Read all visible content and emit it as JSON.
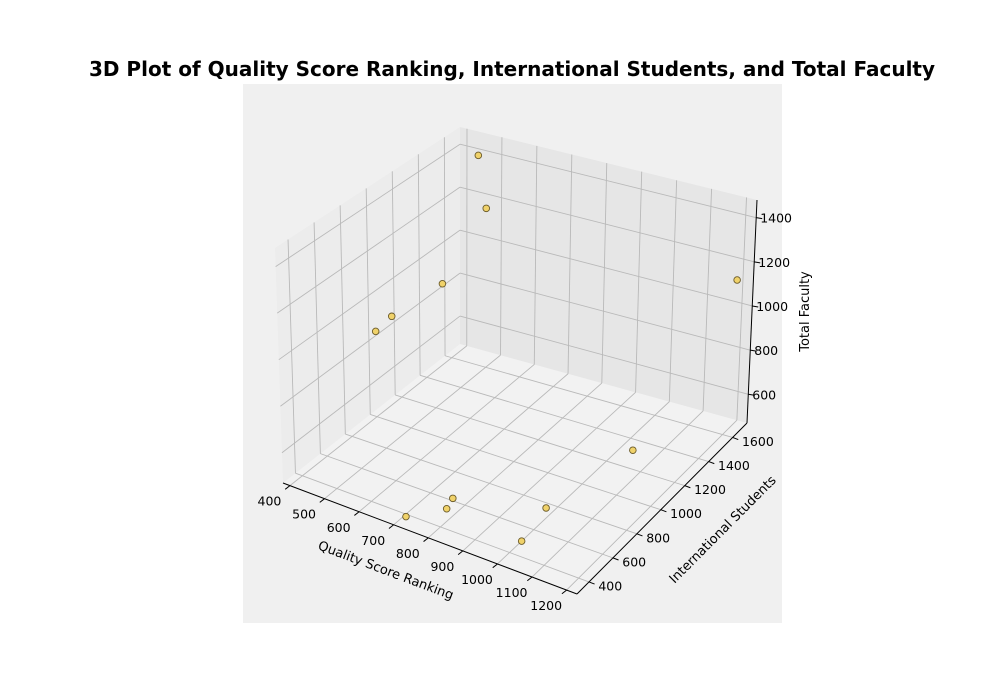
{
  "chart_data": {
    "type": "scatter",
    "projection": "3d",
    "title": "3D Plot of Quality Score Ranking, International Students, and Total Faculty",
    "xlabel": "Quality Score Ranking",
    "ylabel": "International Students",
    "zlabel": "Total Faculty",
    "xlim": [
      380,
      1230
    ],
    "ylim": [
      300,
      1720
    ],
    "zlim": [
      470,
      1480
    ],
    "xticks": [
      "400",
      "500",
      "600",
      "700",
      "800",
      "900",
      "1000",
      "1100",
      "1200"
    ],
    "yticks": [
      "400",
      "600",
      "800",
      "1000",
      "1200",
      "1400",
      "1600"
    ],
    "zticks": [
      "600",
      "800",
      "1000",
      "1200",
      "1400"
    ],
    "grid": true,
    "point_color": "#f0d26a",
    "points": [
      {
        "x": 440,
        "y": 1700,
        "z": 1380
      },
      {
        "x": 500,
        "y": 1600,
        "z": 1200
      },
      {
        "x": 520,
        "y": 1200,
        "z": 1030
      },
      {
        "x": 410,
        "y": 1100,
        "z": 880
      },
      {
        "x": 400,
        "y": 1000,
        "z": 850
      },
      {
        "x": 1190,
        "y": 1700,
        "z": 1110
      },
      {
        "x": 1150,
        "y": 980,
        "z": 680
      },
      {
        "x": 1000,
        "y": 700,
        "z": 510
      },
      {
        "x": 1000,
        "y": 500,
        "z": 470
      },
      {
        "x": 800,
        "y": 500,
        "z": 540
      },
      {
        "x": 800,
        "y": 450,
        "z": 520
      },
      {
        "x": 700,
        "y": 400,
        "z": 460
      }
    ]
  }
}
